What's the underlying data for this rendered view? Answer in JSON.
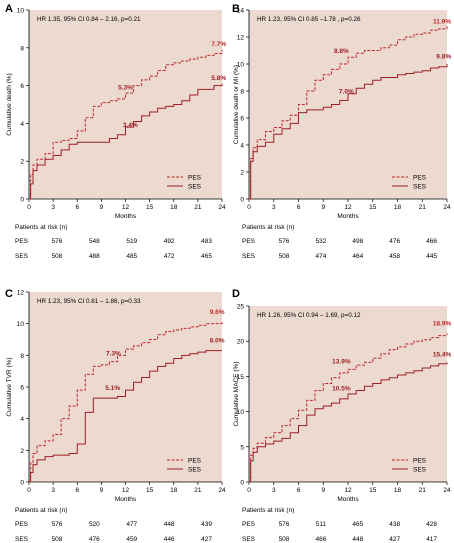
{
  "chart_data": [
    {
      "type": "line",
      "panel_label": "A",
      "annotation": "HR 1.35, 95% CI 0.84 – 2.16, p=0.21",
      "xlabel": "Months",
      "ylabel": "Cumulative death (%)",
      "xlim": [
        0,
        24
      ],
      "ylim": [
        0,
        10
      ],
      "xticks": [
        "0",
        "3",
        "6",
        "9",
        "12",
        "15",
        "18",
        "21",
        "24"
      ],
      "yticks": [
        "0",
        "2",
        "4",
        "6",
        "8",
        "10"
      ],
      "grid": false,
      "legend_position": "bottom-right",
      "series": [
        {
          "name": "PES",
          "color": "#c0282d",
          "dash": true,
          "x": [
            0,
            0.2,
            0.5,
            1,
            2,
            3,
            4,
            5,
            6,
            7,
            8,
            9,
            10,
            11,
            12,
            13,
            14,
            15,
            16,
            17,
            18,
            19,
            20,
            21,
            22,
            23,
            24
          ],
          "y": [
            0,
            1.3,
            1.8,
            2.1,
            2.4,
            3.0,
            3.1,
            3.2,
            3.6,
            4.3,
            4.9,
            5.1,
            5.2,
            5.3,
            5.6,
            6.0,
            6.3,
            6.5,
            6.8,
            7.1,
            7.2,
            7.3,
            7.4,
            7.5,
            7.6,
            7.7,
            7.9
          ]
        },
        {
          "name": "SES",
          "color": "#9e1f25",
          "dash": false,
          "x": [
            0,
            0.2,
            0.5,
            1,
            2,
            3,
            4,
            5,
            6,
            7,
            8,
            9,
            10,
            11,
            12,
            13,
            14,
            15,
            16,
            17,
            18,
            19,
            20,
            21,
            22,
            23,
            24
          ],
          "y": [
            0,
            0.8,
            1.5,
            1.8,
            2.1,
            2.3,
            2.6,
            2.9,
            3.0,
            3.0,
            3.0,
            3.0,
            3.2,
            3.4,
            3.8,
            4.1,
            4.4,
            4.6,
            4.8,
            4.9,
            5.0,
            5.2,
            5.5,
            5.8,
            5.8,
            6.0,
            6.1
          ]
        }
      ],
      "labels": [
        {
          "text": "7.7%",
          "x": 23.6,
          "y": 8.1,
          "color": "#c0282d"
        },
        {
          "text": "5.3%",
          "x": 12.0,
          "y": 5.8,
          "color": "#9e1f25"
        },
        {
          "text": "3.4%",
          "x": 12.6,
          "y": 3.8,
          "color": "#9e1f25"
        },
        {
          "text": "5.8%",
          "x": 23.6,
          "y": 6.3,
          "color": "#9e1f25"
        }
      ],
      "risk_table": {
        "title": "Patients at risk (n)",
        "rows": [
          {
            "name": "PES",
            "values": [
              "576",
              "548",
              "519",
              "492",
              "483"
            ]
          },
          {
            "name": "SES",
            "values": [
              "508",
              "488",
              "485",
              "472",
              "465"
            ]
          }
        ]
      }
    },
    {
      "type": "line",
      "panel_label": "B",
      "annotation": "HR 1.23, 95% CI 0.85 –1.78 , p=0.26",
      "xlabel": "Months",
      "ylabel": "Cumulative death or MI (%)",
      "xlim": [
        0,
        24
      ],
      "ylim": [
        0,
        14
      ],
      "xticks": [
        "0",
        "3",
        "6",
        "9",
        "12",
        "15",
        "18",
        "21",
        "24"
      ],
      "yticks": [
        "0",
        "2",
        "4",
        "6",
        "8",
        "10",
        "12",
        "14"
      ],
      "grid": false,
      "legend_position": "bottom-right",
      "series": [
        {
          "name": "PES",
          "color": "#c0282d",
          "dash": true,
          "x": [
            0,
            0.2,
            0.5,
            1,
            2,
            3,
            4,
            5,
            6,
            7,
            8,
            9,
            10,
            11,
            12,
            13,
            14,
            15,
            16,
            17,
            18,
            19,
            20,
            21,
            22,
            23,
            24
          ],
          "y": [
            0,
            3.0,
            3.8,
            4.4,
            5.0,
            5.3,
            5.8,
            6.2,
            7.0,
            8.0,
            8.8,
            9.2,
            9.6,
            10.0,
            10.5,
            10.8,
            11.0,
            11.0,
            11.2,
            11.4,
            11.8,
            12.0,
            12.2,
            12.3,
            12.5,
            12.6,
            12.8
          ]
        },
        {
          "name": "SES",
          "color": "#9e1f25",
          "dash": false,
          "x": [
            0,
            0.2,
            0.5,
            1,
            2,
            3,
            4,
            5,
            6,
            7,
            8,
            9,
            10,
            11,
            12,
            13,
            14,
            15,
            16,
            17,
            18,
            19,
            20,
            21,
            22,
            23,
            24
          ],
          "y": [
            0,
            2.8,
            3.5,
            3.9,
            4.2,
            4.8,
            5.2,
            5.6,
            6.4,
            6.6,
            6.6,
            6.8,
            7.0,
            7.3,
            7.8,
            8.2,
            8.5,
            8.8,
            9.0,
            9.0,
            9.2,
            9.3,
            9.4,
            9.5,
            9.7,
            9.8,
            10.0
          ]
        }
      ],
      "labels": [
        {
          "text": "11.9%",
          "x": 23.4,
          "y": 13.0,
          "color": "#c0282d"
        },
        {
          "text": "8.8%",
          "x": 11.2,
          "y": 10.8,
          "color": "#9e1f25"
        },
        {
          "text": "7.0%",
          "x": 11.8,
          "y": 7.8,
          "color": "#9e1f25"
        },
        {
          "text": "9.8%",
          "x": 23.6,
          "y": 10.4,
          "color": "#9e1f25"
        }
      ],
      "risk_table": {
        "title": "Patients at risk (n)",
        "rows": [
          {
            "name": "PES",
            "values": [
              "576",
              "532",
              "498",
              "476",
              "466"
            ]
          },
          {
            "name": "SES",
            "values": [
              "508",
              "474",
              "464",
              "458",
              "445"
            ]
          }
        ]
      }
    },
    {
      "type": "line",
      "panel_label": "C",
      "annotation": "HR 1.23, 95% CI 0.81 – 1.86, p=0.33",
      "xlabel": "Months",
      "ylabel": "Cumulative TVR (%)",
      "xlim": [
        0,
        24
      ],
      "ylim": [
        0,
        12
      ],
      "xticks": [
        "0",
        "3",
        "6",
        "9",
        "12",
        "15",
        "18",
        "21",
        "24"
      ],
      "yticks": [
        "0",
        "2",
        "4",
        "6",
        "8",
        "10",
        "12"
      ],
      "grid": false,
      "legend_position": "bottom-right",
      "series": [
        {
          "name": "PES",
          "color": "#c0282d",
          "dash": true,
          "x": [
            0,
            0.2,
            0.5,
            1,
            2,
            3,
            4,
            5,
            6,
            7,
            8,
            9,
            10,
            11,
            12,
            13,
            14,
            15,
            16,
            17,
            18,
            19,
            20,
            21,
            22,
            23,
            24
          ],
          "y": [
            0,
            1.2,
            1.8,
            2.3,
            2.6,
            3.0,
            4.0,
            4.8,
            5.8,
            6.8,
            7.3,
            7.4,
            7.6,
            8.0,
            8.4,
            8.6,
            8.8,
            9.0,
            9.3,
            9.5,
            9.6,
            9.7,
            9.8,
            9.9,
            10.0,
            10.0,
            10.1
          ]
        },
        {
          "name": "SES",
          "color": "#9e1f25",
          "dash": false,
          "x": [
            0,
            0.2,
            0.5,
            1,
            2,
            3,
            4,
            5,
            6,
            7,
            8,
            9,
            10,
            11,
            12,
            13,
            14,
            15,
            16,
            17,
            18,
            19,
            20,
            21,
            22,
            23,
            24
          ],
          "y": [
            0,
            0.6,
            1.1,
            1.4,
            1.6,
            1.7,
            1.7,
            1.8,
            2.4,
            4.4,
            5.3,
            5.3,
            5.3,
            5.4,
            5.8,
            6.3,
            6.6,
            7.0,
            7.3,
            7.5,
            7.8,
            8.0,
            8.1,
            8.2,
            8.3,
            8.3,
            8.3
          ]
        }
      ],
      "labels": [
        {
          "text": "9.6%",
          "x": 23.4,
          "y": 10.6,
          "color": "#c0282d"
        },
        {
          "text": "7.3%",
          "x": 10.5,
          "y": 8.0,
          "color": "#9e1f25"
        },
        {
          "text": "5.1%",
          "x": 10.4,
          "y": 5.8,
          "color": "#9e1f25"
        },
        {
          "text": "8.0%",
          "x": 23.4,
          "y": 8.8,
          "color": "#9e1f25"
        }
      ],
      "risk_table": {
        "title": "Patients at risk (n)",
        "rows": [
          {
            "name": "PES",
            "values": [
              "576",
              "520",
              "477",
              "448",
              "439"
            ]
          },
          {
            "name": "SES",
            "values": [
              "508",
              "476",
              "459",
              "446",
              "427"
            ]
          }
        ]
      }
    },
    {
      "type": "line",
      "panel_label": "D",
      "annotation": "HR 1.26, 95% CI 0.94 – 1.69, p=0.12",
      "xlabel": "Months",
      "ylabel": "Cumulative MACE (%)",
      "xlim": [
        0,
        24
      ],
      "ylim": [
        0,
        25
      ],
      "xticks": [
        "0",
        "3",
        "6",
        "9",
        "12",
        "15",
        "18",
        "21",
        "24"
      ],
      "yticks": [
        "0",
        "5",
        "10",
        "15",
        "20",
        "25"
      ],
      "grid": false,
      "legend_position": "bottom-right",
      "series": [
        {
          "name": "PES",
          "color": "#c0282d",
          "dash": true,
          "x": [
            0,
            0.2,
            0.5,
            1,
            2,
            3,
            4,
            5,
            6,
            7,
            8,
            9,
            10,
            11,
            12,
            13,
            14,
            15,
            16,
            17,
            18,
            19,
            20,
            21,
            22,
            23,
            24
          ],
          "y": [
            0,
            3.8,
            4.8,
            5.5,
            6.3,
            7.0,
            8.0,
            9.0,
            10.2,
            11.6,
            13.0,
            14.0,
            14.8,
            15.5,
            16.0,
            16.6,
            17.0,
            17.6,
            18.2,
            18.8,
            19.2,
            19.6,
            20.0,
            20.2,
            20.5,
            20.8,
            21.1
          ]
        },
        {
          "name": "SES",
          "color": "#9e1f25",
          "dash": false,
          "x": [
            0,
            0.2,
            0.5,
            1,
            2,
            3,
            4,
            5,
            6,
            7,
            8,
            9,
            10,
            11,
            12,
            13,
            14,
            15,
            16,
            17,
            18,
            19,
            20,
            21,
            22,
            23,
            24
          ],
          "y": [
            0,
            3.0,
            4.2,
            5.0,
            5.4,
            5.8,
            6.2,
            7.0,
            8.0,
            9.5,
            10.4,
            10.8,
            11.2,
            11.8,
            12.5,
            13.0,
            13.6,
            14.0,
            14.5,
            14.8,
            15.2,
            15.5,
            15.8,
            16.2,
            16.5,
            16.8,
            17.0
          ]
        }
      ],
      "labels": [
        {
          "text": "18.9%",
          "x": 23.4,
          "y": 22.2,
          "color": "#c0282d"
        },
        {
          "text": "13.9%",
          "x": 11.2,
          "y": 16.8,
          "color": "#9e1f25"
        },
        {
          "text": "10.5%",
          "x": 11.2,
          "y": 13.0,
          "color": "#9e1f25"
        },
        {
          "text": "15.4%",
          "x": 23.4,
          "y": 17.8,
          "color": "#9e1f25"
        }
      ],
      "risk_table": {
        "title": "Patients at risk (n)",
        "rows": [
          {
            "name": "PES",
            "values": [
              "576",
              "511",
              "465",
              "438",
              "428"
            ]
          },
          {
            "name": "SES",
            "values": [
              "508",
              "466",
              "448",
              "427",
              "417"
            ]
          }
        ]
      }
    }
  ],
  "colors": {
    "panel_background": "#ecd9d0",
    "axis": "#000000"
  }
}
